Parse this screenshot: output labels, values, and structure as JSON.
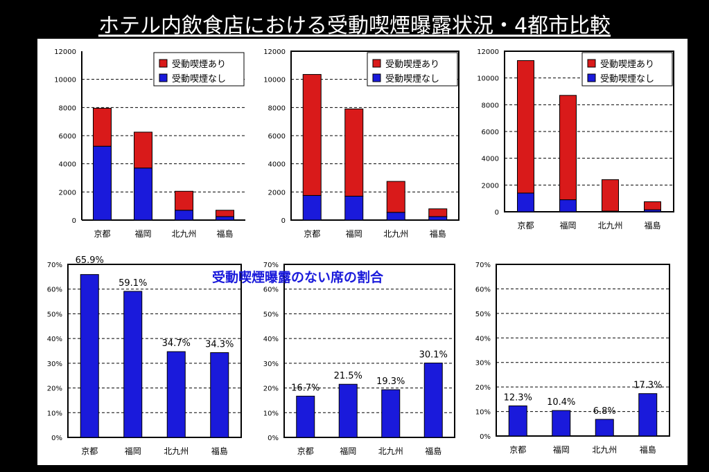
{
  "title": "ホテル内飲食店における受動喫煙曝露状況・4都市比較",
  "overlay_label": "受動喫煙曝露のない席の割合",
  "colors": {
    "exposed": "#d91a1a",
    "not_exposed": "#1a1adb"
  },
  "chart_data": [
    {
      "type": "bar",
      "stacked": true,
      "categories": [
        "京都",
        "福岡",
        "北九州",
        "福島"
      ],
      "series": [
        {
          "name": "受動喫煙なし",
          "color": "#1a1adb",
          "values": [
            5250,
            3700,
            700,
            250
          ]
        },
        {
          "name": "受動喫煙あり",
          "color": "#d91a1a",
          "values": [
            2700,
            2550,
            1350,
            450
          ]
        }
      ],
      "yticks": [
        "0",
        "2000",
        "4000",
        "6000",
        "8000",
        "10000",
        "12000"
      ],
      "ylim": [
        0,
        12000
      ],
      "legend": "top-right",
      "grid": true
    },
    {
      "type": "bar",
      "stacked": true,
      "categories": [
        "京都",
        "福岡",
        "北九州",
        "福島"
      ],
      "series": [
        {
          "name": "受動喫煙なし",
          "color": "#1a1adb",
          "values": [
            1750,
            1700,
            550,
            250
          ]
        },
        {
          "name": "受動喫煙あり",
          "color": "#d91a1a",
          "values": [
            8600,
            6200,
            2200,
            550
          ]
        }
      ],
      "yticks": [
        "0",
        "2000",
        "4000",
        "6000",
        "8000",
        "10000",
        "12000"
      ],
      "ylim": [
        0,
        12000
      ],
      "legend": "top-right",
      "grid": true
    },
    {
      "type": "bar",
      "stacked": true,
      "categories": [
        "京都",
        "福岡",
        "北九州",
        "福島"
      ],
      "series": [
        {
          "name": "受動喫煙なし",
          "color": "#1a1adb",
          "values": [
            1400,
            900,
            50,
            150
          ]
        },
        {
          "name": "受動喫煙あり",
          "color": "#d91a1a",
          "values": [
            9900,
            7800,
            2350,
            600
          ]
        }
      ],
      "yticks": [
        "0",
        "2000",
        "4000",
        "6000",
        "8000",
        "10000",
        "12000"
      ],
      "ylim": [
        0,
        12000
      ],
      "legend": "top-right",
      "grid": true
    },
    {
      "type": "bar",
      "categories": [
        "京都",
        "福岡",
        "北九州",
        "福島"
      ],
      "values": [
        65.9,
        59.1,
        34.7,
        34.3
      ],
      "data_labels": [
        "65.9%",
        "59.1%",
        "34.7%",
        "34.3%"
      ],
      "yticks": [
        "0%",
        "10%",
        "20%",
        "30%",
        "40%",
        "50%",
        "60%",
        "70%"
      ],
      "ylim": [
        0,
        70
      ],
      "grid": true
    },
    {
      "type": "bar",
      "categories": [
        "京都",
        "福岡",
        "北九州",
        "福島"
      ],
      "values": [
        16.7,
        21.5,
        19.3,
        30.1
      ],
      "data_labels": [
        "16.7%",
        "21.5%",
        "19.3%",
        "30.1%"
      ],
      "yticks": [
        "0%",
        "10%",
        "20%",
        "30%",
        "40%",
        "50%",
        "60%",
        "70%"
      ],
      "ylim": [
        0,
        70
      ],
      "grid": true
    },
    {
      "type": "bar",
      "categories": [
        "京都",
        "福岡",
        "北九州",
        "福島"
      ],
      "values": [
        12.3,
        10.4,
        6.8,
        17.3
      ],
      "data_labels": [
        "12.3%",
        "10.4%",
        "6.8%",
        "17.3%"
      ],
      "yticks": [
        "0%",
        "10%",
        "20%",
        "30%",
        "40%",
        "50%",
        "60%",
        "70%"
      ],
      "ylim": [
        0,
        70
      ],
      "grid": true
    }
  ]
}
